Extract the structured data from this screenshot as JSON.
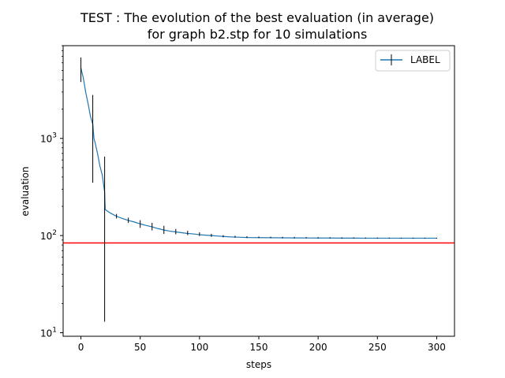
{
  "chart_data": {
    "type": "line",
    "title_lines": [
      "TEST : The evolution of the best evaluation (in average)",
      "for graph b2.stp for 10 simulations"
    ],
    "xlabel": "steps",
    "ylabel": "evaluation",
    "xlim": [
      -15,
      315
    ],
    "ylim": [
      9.2,
      9000
    ],
    "yscale": "log",
    "x_ticks": [
      0,
      50,
      100,
      150,
      200,
      250,
      300
    ],
    "x_tick_labels": [
      "0",
      "50",
      "100",
      "150",
      "200",
      "250",
      "300"
    ],
    "y_ticks": [
      10,
      100,
      1000
    ],
    "y_tick_labels": [
      {
        "base": "10",
        "exp": "1"
      },
      {
        "base": "10",
        "exp": "2"
      },
      {
        "base": "10",
        "exp": "3"
      }
    ],
    "grid": false,
    "legend": {
      "placement": "top-right",
      "entries": [
        "LABEL"
      ]
    },
    "series": [
      {
        "name": "LABEL",
        "color": "#1f77b4",
        "x": [
          0,
          2,
          4,
          6,
          8,
          10,
          11,
          12,
          14,
          16,
          18,
          20,
          20.5,
          25,
          30,
          35,
          40,
          45,
          50,
          55,
          60,
          65,
          70,
          75,
          80,
          85,
          90,
          95,
          100,
          105,
          110,
          115,
          120,
          125,
          130,
          135,
          140,
          150,
          160,
          170,
          180,
          190,
          200,
          210,
          220,
          230,
          240,
          250,
          260,
          270,
          280,
          290,
          300
        ],
        "y": [
          5300,
          4200,
          3000,
          2300,
          1700,
          1400,
          1000,
          900,
          700,
          520,
          420,
          280,
          185,
          170,
          158,
          150,
          143,
          138,
          132,
          127,
          123,
          118,
          114,
          111,
          109,
          107,
          105,
          104,
          102,
          101,
          100,
          99,
          98,
          97,
          96.5,
          96,
          95.5,
          95.2,
          95,
          94.8,
          94.6,
          94.5,
          94.4,
          94.3,
          94.2,
          94.1,
          94,
          94,
          94,
          94,
          94,
          94,
          94
        ]
      }
    ],
    "error_bars": {
      "color": "#000000",
      "x": [
        0,
        10,
        20,
        30,
        40,
        50,
        60,
        70,
        80,
        90,
        100,
        110,
        120,
        130,
        140,
        150,
        160,
        170,
        180,
        190,
        200,
        210,
        220,
        230,
        240,
        250,
        260,
        270,
        280,
        290,
        300
      ],
      "low": [
        3800,
        350,
        13,
        150,
        135,
        120,
        113,
        104,
        103,
        101,
        99,
        97,
        96,
        95,
        94.5,
        94.2,
        94,
        93.8,
        93.7,
        93.6,
        93.5,
        93.4,
        93.3,
        93.2,
        93.1,
        93,
        93,
        93,
        93,
        93,
        93
      ],
      "high": [
        6800,
        2800,
        650,
        167,
        153,
        144,
        135,
        126,
        117,
        112,
        108,
        104,
        101,
        99.5,
        98.5,
        97.7,
        97.3,
        97,
        96.8,
        96.5,
        96.3,
        96.1,
        95.9,
        95.7,
        95.5,
        95.3,
        95.2,
        95.1,
        95,
        95,
        95
      ]
    },
    "reference_line": {
      "y": 84,
      "color": "#ff0000"
    }
  }
}
